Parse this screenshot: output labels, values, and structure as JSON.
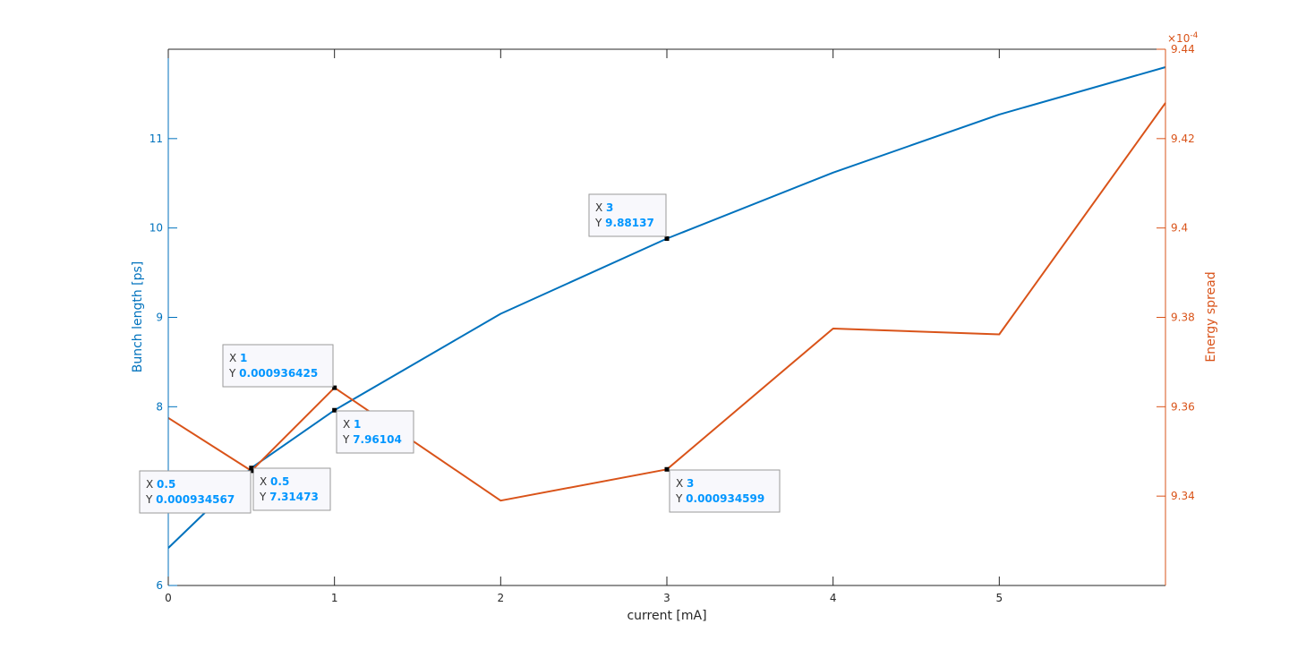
{
  "chart_data": {
    "type": "line",
    "title": "",
    "xlabel": "current [mA]",
    "xlim": [
      0,
      6
    ],
    "x_ticks": [
      0,
      1,
      2,
      3,
      4,
      5
    ],
    "x_tick_labels": [
      "0",
      "1",
      "2",
      "3",
      "4",
      "5"
    ],
    "grid": false,
    "legend": "none",
    "left_axis": {
      "label": "Bunch length [ps]",
      "color": "#0072BD",
      "ylim": [
        6,
        12
      ],
      "ticks": [
        6,
        7,
        8,
        9,
        10,
        11
      ],
      "tick_labels": [
        "6",
        "",
        "8",
        "9",
        "10",
        "11"
      ]
    },
    "right_axis": {
      "label": "Energy spread",
      "color": "#D95319",
      "exponent_label": "×10-4",
      "exponent_base": "×10",
      "exponent_power": "-4",
      "ylim": [
        9.32,
        9.44
      ],
      "ticks": [
        9.34,
        9.36,
        9.38,
        9.4,
        9.42,
        9.44
      ],
      "tick_labels": [
        "9.34",
        "9.36",
        "9.38",
        "9.4",
        "9.42",
        "9.44"
      ]
    },
    "series": [
      {
        "axis": "left",
        "color": "#0072BD",
        "x": [
          0,
          0.5,
          1,
          2,
          3,
          4,
          5,
          6
        ],
        "y": [
          6.42,
          7.31473,
          7.96104,
          9.04,
          9.88137,
          10.62,
          11.27,
          11.8
        ]
      },
      {
        "axis": "right",
        "color": "#D95319",
        "x": [
          0,
          0.5,
          1,
          2,
          3,
          4,
          5,
          6
        ],
        "y": [
          9.3575,
          9.34567,
          9.36425,
          9.339,
          9.34599,
          9.3775,
          9.3762,
          9.428
        ]
      }
    ],
    "datatips": [
      {
        "series": 0,
        "x_label": "X",
        "y_label": "Y",
        "x_value": "1",
        "y_value": "7.96104",
        "x": 1,
        "y": 7.96104
      },
      {
        "series": 0,
        "x_label": "X",
        "y_label": "Y",
        "x_value": "3",
        "y_value": "9.88137",
        "x": 3,
        "y": 9.88137
      },
      {
        "series": 0,
        "x_label": "X",
        "y_label": "Y",
        "x_value": "0.5",
        "y_value": "7.31473",
        "x": 0.5,
        "y": 7.31473
      },
      {
        "series": 1,
        "x_label": "X",
        "y_label": "Y",
        "x_value": "1",
        "y_value": "0.000936425",
        "x": 1,
        "y": 9.36425
      },
      {
        "series": 1,
        "x_label": "X",
        "y_label": "Y",
        "x_value": "0.5",
        "y_value": "0.000934567",
        "x": 0.5,
        "y": 9.34567
      },
      {
        "series": 1,
        "x_label": "X",
        "y_label": "Y",
        "x_value": "3",
        "y_value": "0.000934599",
        "x": 3,
        "y": 9.34599
      }
    ]
  }
}
